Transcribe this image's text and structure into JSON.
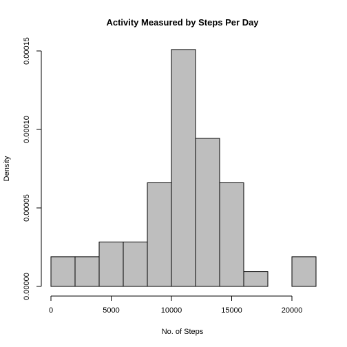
{
  "chart_data": {
    "type": "bar",
    "subtype": "histogram",
    "title": "Activity Measured by Steps Per Day",
    "xlabel": "No. of Steps",
    "ylabel": "Density",
    "bins": [
      {
        "start": 0,
        "end": 2000,
        "density": 1.89e-05
      },
      {
        "start": 2000,
        "end": 4000,
        "density": 1.89e-05
      },
      {
        "start": 4000,
        "end": 6000,
        "density": 2.83e-05
      },
      {
        "start": 6000,
        "end": 8000,
        "density": 2.83e-05
      },
      {
        "start": 8000,
        "end": 10000,
        "density": 6.6e-05
      },
      {
        "start": 10000,
        "end": 12000,
        "density": 0.0001509
      },
      {
        "start": 12000,
        "end": 14000,
        "density": 9.43e-05
      },
      {
        "start": 14000,
        "end": 16000,
        "density": 6.6e-05
      },
      {
        "start": 16000,
        "end": 18000,
        "density": 9.4e-06
      },
      {
        "start": 18000,
        "end": 20000,
        "density": 0.0
      },
      {
        "start": 20000,
        "end": 22000,
        "density": 1.89e-05
      }
    ],
    "xlim": [
      0,
      22000
    ],
    "ylim": [
      0,
      0.00015
    ],
    "x_ticks": [
      0,
      5000,
      10000,
      15000,
      20000
    ],
    "x_tick_labels": [
      "0",
      "5000",
      "10000",
      "15000",
      "20000"
    ],
    "y_ticks": [
      0,
      5e-05,
      0.0001,
      0.00015
    ],
    "y_tick_labels": [
      "0.00000",
      "0.00005",
      "0.00010",
      "0.00015"
    ],
    "bar_fill": "#bebebe",
    "bar_stroke": "#000000",
    "grid": false,
    "legend": "none"
  }
}
